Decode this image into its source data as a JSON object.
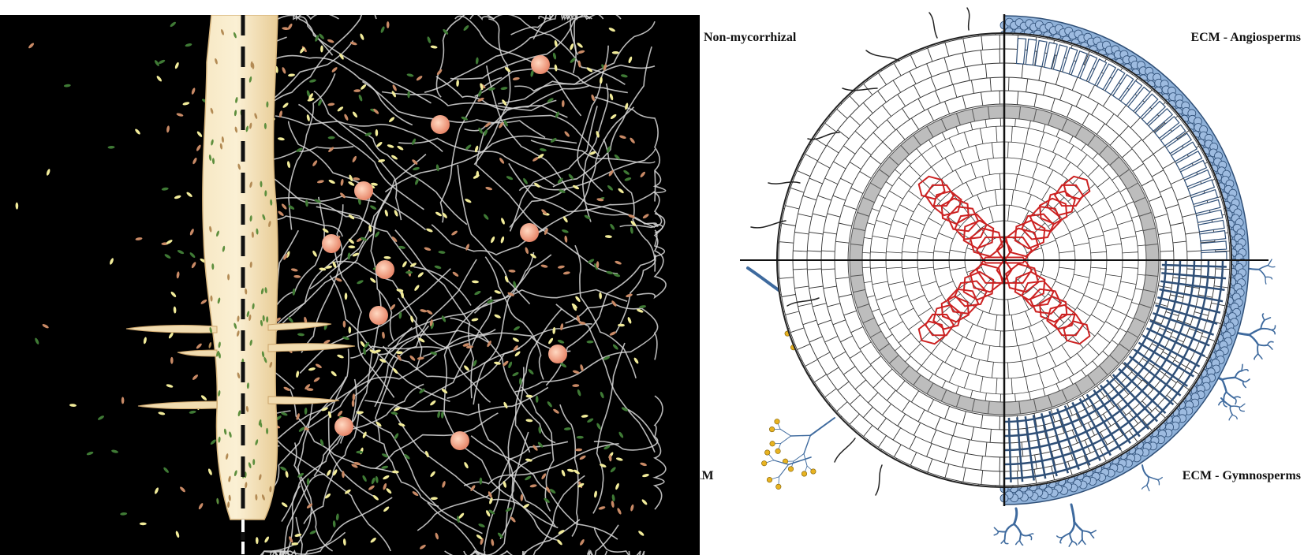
{
  "figure": {
    "left_panel": {
      "subject": "rhizosphere"
    },
    "right_panel": {
      "labels": {
        "top_left": "Non-mycorrhizal",
        "top_right": "ECM - Angiosperms",
        "bottom_left": "AM",
        "bottom_right": "ECM - Gymnosperms"
      }
    }
  },
  "colors": {
    "background_left": "#000000",
    "root": "#f3dfb6",
    "hyphae": "#d9d9d9",
    "bacteria_green": "#3f7a35",
    "bacteria_yellow": "#f2ec9a",
    "bacteria_orange": "#c98a66",
    "spore": "#f0a784",
    "cell_outline": "#333333",
    "endodermis": "#bdbdbd",
    "stele": "#cc2222",
    "fungus": "#3e6a9e",
    "mantle": "#8fb1d8",
    "arbuscule_spore": "#e8b321"
  }
}
